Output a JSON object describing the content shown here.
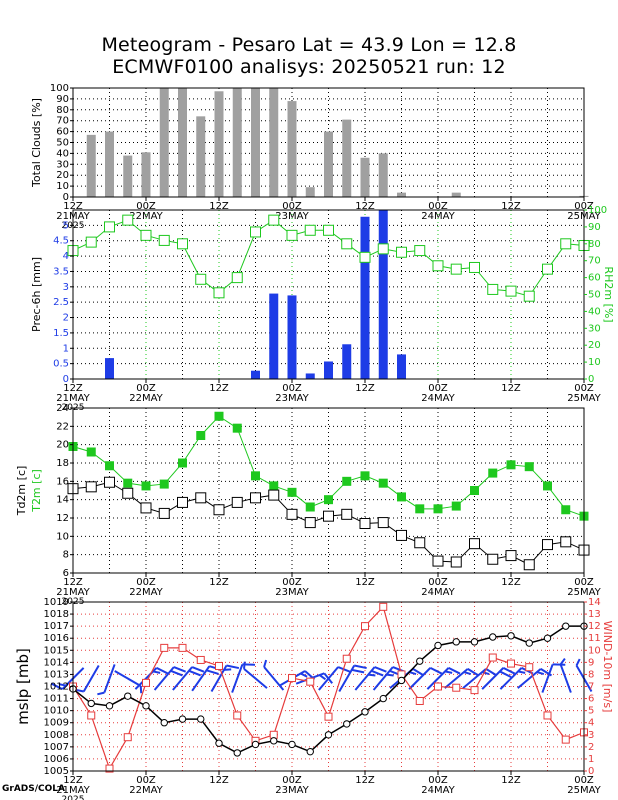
{
  "title_line1": "Meteogram - Pesaro Lat = 43.9 Lon = 12.8",
  "title_line2": "ECMWF0100 analisys: 20250521 run: 12",
  "credit": "GrADS/COLA",
  "time_axis": {
    "start": "2025-05-21 12Z",
    "step_hours": 6,
    "labels": [
      {
        "t": 0,
        "l1": "12Z",
        "l2": "21MAY",
        "l3": "2025"
      },
      {
        "t": 12,
        "l1": "00Z",
        "l2": "22MAY",
        "l3": ""
      },
      {
        "t": 24,
        "l1": "12Z",
        "l2": "",
        "l3": ""
      },
      {
        "t": 36,
        "l1": "00Z",
        "l2": "23MAY",
        "l3": ""
      },
      {
        "t": 48,
        "l1": "12Z",
        "l2": "",
        "l3": ""
      },
      {
        "t": 60,
        "l1": "00Z",
        "l2": "24MAY",
        "l3": ""
      },
      {
        "t": 72,
        "l1": "12Z",
        "l2": "",
        "l3": ""
      },
      {
        "t": 84,
        "l1": "00Z",
        "l2": "25MAY",
        "l3": ""
      }
    ]
  },
  "chart_data": [
    {
      "type": "bar",
      "name": "clouds",
      "ylabel": "Total Clouds [%]",
      "ylim": [
        0,
        100
      ],
      "yticks": [
        0,
        10,
        20,
        30,
        40,
        50,
        60,
        70,
        80,
        90,
        100
      ],
      "bar_color": "#a0a0a0",
      "t": [
        3,
        6,
        9,
        12,
        15,
        18,
        21,
        24,
        27,
        30,
        33,
        36,
        39,
        42,
        45,
        48,
        51,
        54,
        57,
        60,
        63,
        66,
        69,
        72,
        75,
        78,
        81,
        84
      ],
      "values": [
        57,
        60,
        38,
        41,
        100,
        100,
        74,
        97,
        100,
        100,
        100,
        88,
        9,
        60,
        71,
        36,
        40,
        4,
        0,
        0,
        4,
        0,
        0,
        0,
        0,
        0,
        0,
        1
      ]
    },
    {
      "type": "bar+line",
      "name": "precip_rh",
      "ylabel": "Prec-6h [mm]",
      "ylabel_right": "RH2m [%]",
      "ylim": [
        0,
        5.5
      ],
      "yticks": [
        0,
        0.5,
        1,
        1.5,
        2,
        2.5,
        3,
        3.5,
        4,
        4.5,
        5
      ],
      "yticks_right": [
        0,
        10,
        20,
        30,
        40,
        50,
        60,
        70,
        80,
        90,
        100
      ],
      "bar_color": "#1e3ce6",
      "line_color": "#1ec81e",
      "precip_t": [
        6,
        30,
        33,
        36,
        39,
        42,
        45,
        48,
        51,
        54
      ],
      "precip_values": [
        0.68,
        0.27,
        2.78,
        2.72,
        0.18,
        0.57,
        1.13,
        5.28,
        5.5,
        0.8
      ],
      "rh_t": [
        0,
        3,
        6,
        9,
        12,
        15,
        18,
        21,
        24,
        27,
        30,
        33,
        36,
        39,
        42,
        45,
        48,
        51,
        54,
        57,
        60,
        63,
        66,
        69,
        72,
        75,
        78,
        81,
        84
      ],
      "rh_values": [
        76,
        81,
        90,
        94,
        85,
        82,
        80,
        59,
        51,
        60,
        87,
        94,
        85,
        88,
        88,
        80,
        72,
        77,
        75,
        76,
        67,
        65,
        66,
        53,
        52,
        49,
        65,
        80,
        79
      ]
    },
    {
      "type": "line",
      "name": "temperature",
      "ylabel": "Td2m [c]",
      "ylabel2": "T2m [c]",
      "ylim": [
        6,
        24
      ],
      "yticks": [
        6,
        8,
        10,
        12,
        14,
        16,
        18,
        20,
        22,
        24
      ],
      "series": [
        {
          "name": "T2m",
          "color": "#1ec81e",
          "marker": "filled-square",
          "t": [
            0,
            3,
            6,
            9,
            12,
            15,
            18,
            21,
            24,
            27,
            30,
            33,
            36,
            39,
            42,
            45,
            48,
            51,
            54,
            57,
            60,
            63,
            66,
            69,
            72,
            75,
            78,
            81,
            84
          ],
          "values": [
            19.8,
            19.2,
            17.7,
            15.8,
            15.5,
            15.7,
            18,
            21,
            23.1,
            21.8,
            16.6,
            15.5,
            14.8,
            13.2,
            14,
            16,
            16.6,
            15.8,
            14.3,
            13,
            13,
            13.3,
            15,
            16.9,
            17.8,
            17.6,
            15.5,
            12.9,
            12.2
          ]
        },
        {
          "name": "Td2m",
          "color": "#000000",
          "marker": "open-square",
          "t": [
            0,
            3,
            6,
            9,
            12,
            15,
            18,
            21,
            24,
            27,
            30,
            33,
            36,
            39,
            42,
            45,
            48,
            51,
            54,
            57,
            60,
            63,
            66,
            69,
            72,
            75,
            78,
            81,
            84
          ],
          "values": [
            15.2,
            15.4,
            15.9,
            14.7,
            13.1,
            12.5,
            13.7,
            14.2,
            12.9,
            13.7,
            14.2,
            14.5,
            12.4,
            11.5,
            12.2,
            12.4,
            11.4,
            11.5,
            10.1,
            9.3,
            7.3,
            7.2,
            9.2,
            7.5,
            7.9,
            6.9,
            9.1,
            9.4,
            8.5
          ]
        }
      ]
    },
    {
      "type": "line+barbs",
      "name": "pressure_wind",
      "ylabel": "mslp [mb]",
      "ylabel_right": "WIND-10m [m/s]",
      "ylim": [
        1005,
        1019
      ],
      "yticks": [
        1005,
        1006,
        1007,
        1008,
        1009,
        1010,
        1011,
        1012,
        1013,
        1014,
        1015,
        1016,
        1017,
        1018,
        1019
      ],
      "yticks_right": [
        0,
        1,
        2,
        3,
        4,
        5,
        6,
        7,
        8,
        9,
        10,
        11,
        12,
        13,
        14
      ],
      "series": [
        {
          "name": "mslp",
          "color": "#000000",
          "marker": "open-circle",
          "t": [
            0,
            3,
            6,
            9,
            12,
            15,
            18,
            21,
            24,
            27,
            30,
            33,
            36,
            39,
            42,
            45,
            48,
            51,
            54,
            57,
            60,
            63,
            66,
            69,
            72,
            75,
            78,
            81,
            84
          ],
          "values": [
            1011.8,
            1010.6,
            1010.4,
            1011.2,
            1010.4,
            1009,
            1009.3,
            1009.3,
            1007.3,
            1006.5,
            1007.2,
            1007.5,
            1007.2,
            1006.6,
            1008,
            1008.9,
            1009.9,
            1011,
            1012.5,
            1014.1,
            1015.4,
            1015.7,
            1015.7,
            1016.1,
            1016.2,
            1015.6,
            1016,
            1017,
            1017
          ]
        },
        {
          "name": "WIND-10m",
          "color": "#e63c3c",
          "marker": "open-square",
          "t": [
            0,
            3,
            6,
            9,
            12,
            15,
            18,
            21,
            24,
            27,
            30,
            33,
            36,
            39,
            42,
            45,
            48,
            51,
            54,
            57,
            60,
            63,
            66,
            69,
            72,
            75,
            78,
            81,
            84
          ],
          "values": [
            7,
            4.6,
            0.2,
            2.8,
            7.3,
            10.2,
            10.2,
            9.2,
            8.7,
            4.6,
            2.5,
            3,
            7.7,
            7.4,
            4.5,
            9.3,
            12,
            13.6,
            8,
            5.8,
            7,
            6.9,
            6.7,
            9.4,
            8.9,
            8.6,
            4.6,
            2.6,
            3.2
          ]
        }
      ],
      "barb_color": "#1e3ce6",
      "barbs": [
        {
          "t": 0,
          "dir": 225,
          "spd": 14
        },
        {
          "t": 3,
          "dir": 210,
          "spd": 10
        },
        {
          "t": 6,
          "dir": 200,
          "spd": 5
        },
        {
          "t": 9,
          "dir": 120,
          "spd": 6
        },
        {
          "t": 12,
          "dir": 45,
          "spd": 14
        },
        {
          "t": 15,
          "dir": 40,
          "spd": 20
        },
        {
          "t": 18,
          "dir": 40,
          "spd": 20
        },
        {
          "t": 21,
          "dir": 35,
          "spd": 18
        },
        {
          "t": 24,
          "dir": 30,
          "spd": 17
        },
        {
          "t": 27,
          "dir": 20,
          "spd": 10
        },
        {
          "t": 30,
          "dir": 310,
          "spd": 5
        },
        {
          "t": 33,
          "dir": 320,
          "spd": 6
        },
        {
          "t": 36,
          "dir": 60,
          "spd": 15
        },
        {
          "t": 39,
          "dir": 70,
          "spd": 14
        },
        {
          "t": 42,
          "dir": 40,
          "spd": 10
        },
        {
          "t": 45,
          "dir": 30,
          "spd": 18
        },
        {
          "t": 48,
          "dir": 40,
          "spd": 23
        },
        {
          "t": 51,
          "dir": 40,
          "spd": 26
        },
        {
          "t": 54,
          "dir": 50,
          "spd": 15
        },
        {
          "t": 57,
          "dir": 45,
          "spd": 12
        },
        {
          "t": 60,
          "dir": 45,
          "spd": 14
        },
        {
          "t": 63,
          "dir": 50,
          "spd": 13
        },
        {
          "t": 66,
          "dir": 50,
          "spd": 13
        },
        {
          "t": 69,
          "dir": 45,
          "spd": 18
        },
        {
          "t": 72,
          "dir": 45,
          "spd": 17
        },
        {
          "t": 75,
          "dir": 50,
          "spd": 16
        },
        {
          "t": 78,
          "dir": 20,
          "spd": 9
        },
        {
          "t": 81,
          "dir": 340,
          "spd": 5
        },
        {
          "t": 84,
          "dir": 330,
          "spd": 6
        }
      ]
    }
  ]
}
